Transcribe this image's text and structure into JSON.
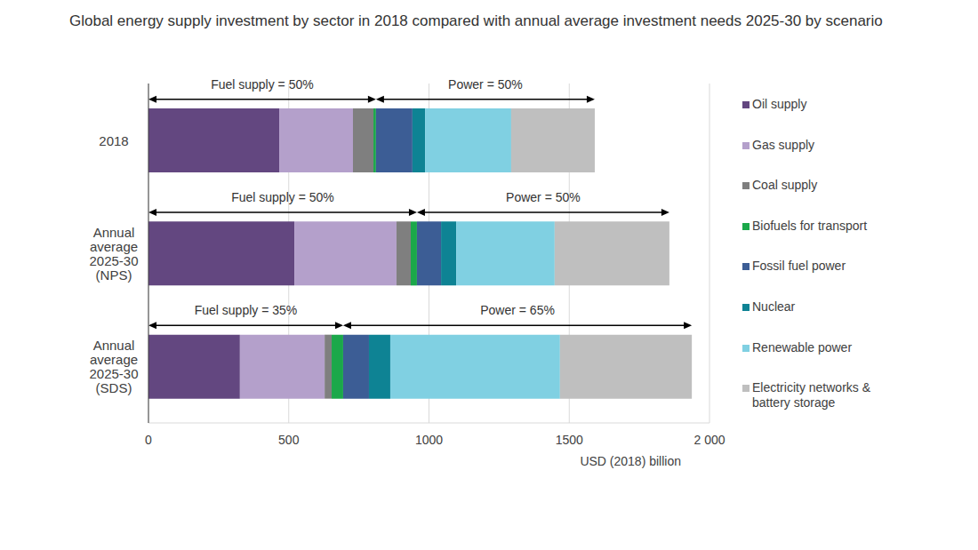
{
  "chart_data": {
    "type": "bar",
    "title": "Global energy supply investment by sector in 2018 compared with annual average investment needs 2025-30 by scenario",
    "x_label": "USD (2018) billion",
    "orientation": "horizontal",
    "stacked": true,
    "grid": true,
    "legend": "right",
    "categories": [
      "2018",
      "Annual average 2025-30 (NPS)",
      "Annual average 2025-30 (SDS)"
    ],
    "series": [
      {
        "name": "Oil supply",
        "color": "#634780",
        "values": [
          466,
          520,
          326
        ]
      },
      {
        "name": "Gas supply",
        "color": "#b4a0cb",
        "values": [
          263,
          364,
          302
        ]
      },
      {
        "name": "Coal supply",
        "color": "#7f7f7f",
        "values": [
          73,
          51,
          25
        ]
      },
      {
        "name": "Biofuels for transport",
        "color": "#1ba84a",
        "values": [
          9,
          22,
          41
        ]
      },
      {
        "name": "Fossil fuel power",
        "color": "#3c5d95",
        "values": [
          130,
          86,
          92
        ]
      },
      {
        "name": "Nuclear",
        "color": "#0e8394",
        "values": [
          45,
          54,
          76
        ]
      },
      {
        "name": "Renewable power",
        "color": "#80d0e2",
        "values": [
          307,
          351,
          605
        ]
      },
      {
        "name": "Electricity networks & battery storage",
        "color": "#bfbfbf",
        "values": [
          298,
          409,
          470
        ]
      }
    ],
    "xlim": [
      0,
      2000
    ],
    "xticks": [
      0,
      500,
      1000,
      1500,
      {
        "value": 2000,
        "label": "2 000"
      }
    ],
    "annotations": [
      {
        "category": "2018",
        "text": "Fuel supply = 50%",
        "series": [
          "Oil supply",
          "Gas supply",
          "Coal supply",
          "Biofuels for transport"
        ]
      },
      {
        "category": "2018",
        "text": "Power = 50%",
        "series": [
          "Fossil fuel power",
          "Nuclear",
          "Renewable power",
          "Electricity networks & battery storage"
        ]
      },
      {
        "category": "Annual average 2025-30 (NPS)",
        "text": "Fuel supply = 50%",
        "series": [
          "Oil supply",
          "Gas supply",
          "Coal supply",
          "Biofuels for transport"
        ]
      },
      {
        "category": "Annual average 2025-30 (NPS)",
        "text": "Power = 50%",
        "series": [
          "Fossil fuel power",
          "Nuclear",
          "Renewable power",
          "Electricity networks & battery storage"
        ]
      },
      {
        "category": "Annual average 2025-30 (SDS)",
        "text": "Fuel supply = 35%",
        "series": [
          "Oil supply",
          "Gas supply",
          "Coal supply",
          "Biofuels for transport"
        ]
      },
      {
        "category": "Annual average 2025-30 (SDS)",
        "text": "Power = 65%",
        "series": [
          "Fossil fuel power",
          "Nuclear",
          "Renewable power",
          "Electricity networks & battery storage"
        ]
      }
    ]
  }
}
